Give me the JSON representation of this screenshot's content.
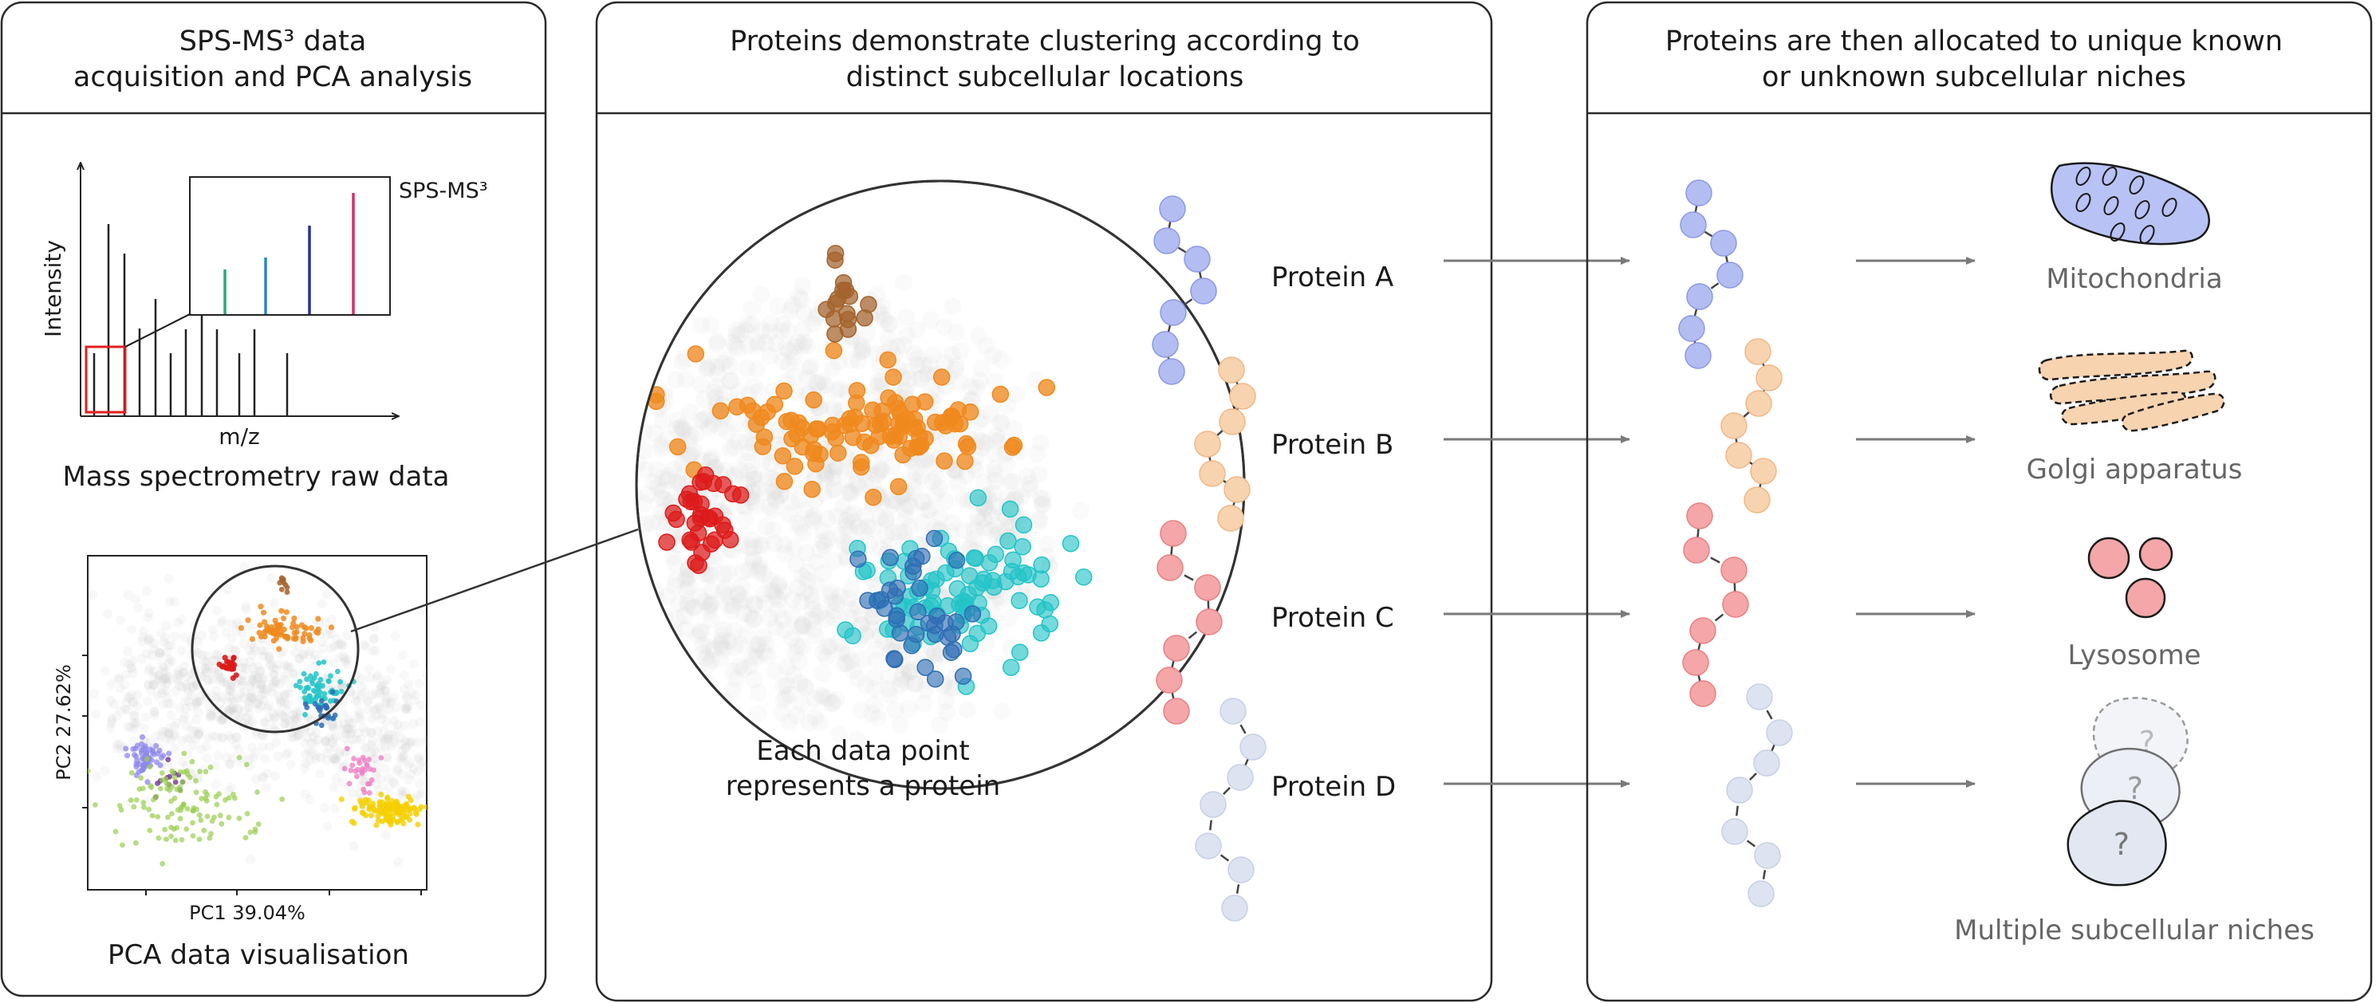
{
  "panels": [
    {
      "title_line1": "SPS-MS³ data",
      "title_line2": "acquisition and PCA analysis"
    },
    {
      "title_line1": "Proteins demonstrate clustering according to",
      "title_line2": "distinct subcellular locations"
    },
    {
      "title_line1": "Proteins are then allocated to unique known",
      "title_line2": "or unknown subcellular niches"
    }
  ],
  "ms_plot": {
    "ylabel": "Intensity",
    "xlabel": "m/z",
    "inset_label": "SPS-MS³",
    "caption": "Mass spectrometry raw data",
    "inset_colors": [
      "#2ca87a",
      "#2b87c8",
      "#2a2f96",
      "#d1326a"
    ]
  },
  "pca_plot": {
    "xlabel": "PC1 39.04%",
    "ylabel": "PC2 27.62%",
    "caption": "PCA data visualisation"
  },
  "zoom_caption_line1": "Each data point",
  "zoom_caption_line2": "represents a protein",
  "proteins": [
    {
      "label": "Protein A",
      "color": "#b3bdf2",
      "stroke": "#8d99e6"
    },
    {
      "label": "Protein B",
      "color": "#f8d3b0",
      "stroke": "#efb889"
    },
    {
      "label": "Protein C",
      "color": "#f4a6a8",
      "stroke": "#e88184"
    },
    {
      "label": "Protein D",
      "color": "#dde3f1",
      "stroke": "#c8d0e4"
    }
  ],
  "niches": [
    {
      "label": "Mitochondria",
      "icon": "mitochondria-icon",
      "color": "#b8c2f4"
    },
    {
      "label": "Golgi apparatus",
      "icon": "golgi-icon",
      "color": "#f8d3b0"
    },
    {
      "label": "Lysosome",
      "icon": "lysosome-icon",
      "color": "#f4a6a8"
    },
    {
      "label": "Multiple subcellular niches",
      "icon": "unknown-niche-icon",
      "color": "#e3e7f2"
    }
  ],
  "cluster_colors": {
    "orange": "#f0891e",
    "cyan": "#22c4c8",
    "blue": "#2e6db4",
    "red": "#dd1b1b",
    "brown": "#a4622c",
    "purple": "#8d87ee",
    "green": "#9acd4f",
    "pink": "#ec82c6",
    "yellow": "#f5cf00",
    "violet": "#7b3f9a",
    "background": "#c8c8c8"
  }
}
